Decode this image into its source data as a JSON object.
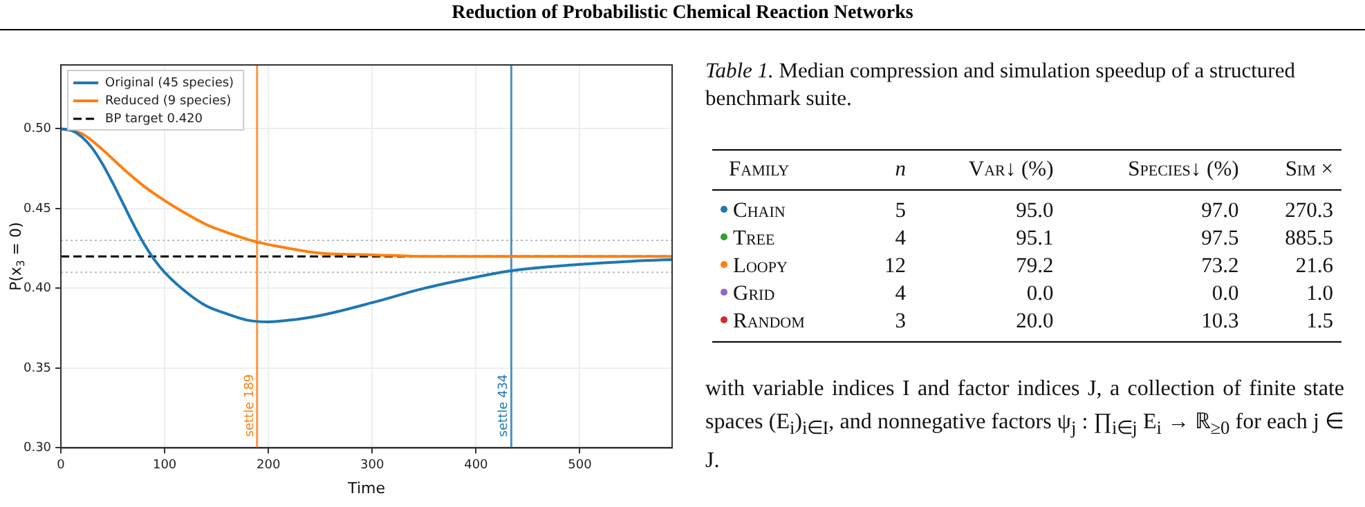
{
  "chart_data": [
    {
      "type": "line",
      "title": "Reduction of Probabilistic Chemical Reaction Networks",
      "xlabel": "Time",
      "ylabel": "P(x$_{3}$ = 0)",
      "xlim": [
        0,
        589
      ],
      "ylim": [
        0.3,
        0.54
      ],
      "xticks": [
        0,
        100,
        200,
        300,
        400,
        500
      ],
      "yticks": [
        {
          "value": 0.3,
          "label": "0.30"
        },
        0.35,
        {
          "value": 0.4,
          "label": "0.40"
        },
        0.45,
        {
          "value": 0.5,
          "label": "0.50"
        }
      ],
      "grid": true,
      "legend": "top left",
      "line_style": "solid",
      "marker": "none",
      "series": [
        {
          "name": "Original (45 species)",
          "color": "#1f77b4",
          "x": [
            0,
            10,
            20,
            30,
            40,
            50,
            60,
            70,
            80,
            90,
            100,
            120,
            140,
            160,
            180,
            200,
            220,
            250,
            300,
            350,
            400,
            434,
            500,
            550,
            589
          ],
          "values": [
            0.5,
            0.499,
            0.495,
            0.488,
            0.478,
            0.466,
            0.453,
            0.44,
            0.428,
            0.418,
            0.41,
            0.398,
            0.389,
            0.384,
            0.38,
            0.379,
            0.38,
            0.383,
            0.391,
            0.4,
            0.407,
            0.411,
            0.415,
            0.417,
            0.418
          ]
        },
        {
          "name": "Reduced (9 species)",
          "color": "#ff7f0e",
          "x": [
            0,
            20,
            40,
            60,
            80,
            100,
            120,
            140,
            160,
            189,
            220,
            250,
            300,
            350,
            589
          ],
          "values": [
            0.5,
            0.497,
            0.487,
            0.475,
            0.464,
            0.455,
            0.447,
            0.44,
            0.435,
            0.429,
            0.425,
            0.422,
            0.421,
            0.42,
            0.42
          ]
        },
        {
          "name": "BP target 0.420",
          "color": "#000000",
          "line_style": "dashed",
          "x": [
            0,
            589
          ],
          "values": [
            0.42,
            0.42
          ]
        }
      ],
      "ref_lines": [
        {
          "axis": "y",
          "value": 0.43,
          "label": null,
          "color": "#bbbbbb",
          "line_style": "dotted"
        },
        {
          "axis": "y",
          "value": 0.41,
          "label": null,
          "color": "#bbbbbb",
          "line_style": "dotted"
        },
        {
          "axis": "x",
          "value": 189,
          "label": "settle 189",
          "color": "#ff7f0e",
          "line_style": "solid"
        },
        {
          "axis": "x",
          "value": 434,
          "label": "settle 434",
          "color": "#1f77b4",
          "line_style": "solid"
        }
      ]
    },
    {
      "type": "other",
      "title": "Table 1. Median compression and simulation speedup of a structured benchmark suite.",
      "xlabel": "Family",
      "categories": [
        "Chain",
        "Tree",
        "Loopy",
        "Grid",
        "Random"
      ],
      "colors": [
        "#1f77b4",
        "#2ca02c",
        "#ff7f0e",
        "#9467bd",
        "#d62728"
      ],
      "data_labels": true,
      "series": [
        {
          "name": "n",
          "values": [
            5,
            4,
            12,
            4,
            3
          ],
          "value_labels": [
            "5",
            "4",
            "12",
            "4",
            "3"
          ]
        },
        {
          "name": "Var↓ (%)",
          "values": [
            95.0,
            95.1,
            79.2,
            0.0,
            20.0
          ],
          "value_labels": [
            "95.0",
            "95.1",
            "79.2",
            "0.0",
            "20.0"
          ]
        },
        {
          "name": "Species↓ (%)",
          "values": [
            97.0,
            97.5,
            73.2,
            0.0,
            10.3
          ],
          "value_labels": [
            "97.0",
            "97.5",
            "73.2",
            "0.0",
            "10.3"
          ]
        },
        {
          "name": "Sim ×",
          "values": [
            270.3,
            885.5,
            21.6,
            1.0,
            1.5
          ],
          "value_labels": [
            "270.3",
            "885.5",
            "21.6",
            "1.0",
            "1.5"
          ]
        }
      ],
      "annotations": [
        "with variable indices I and factor indices J, a collection of finite state spaces (E$_{i}$)$_{i∈I}$, and nonnegative factors ψ$_{j}$ : ∏$_{i∈j}$ E$_{i}$ → ℝ$_{≥0}$ for each j ∈ J."
      ]
    }
  ]
}
